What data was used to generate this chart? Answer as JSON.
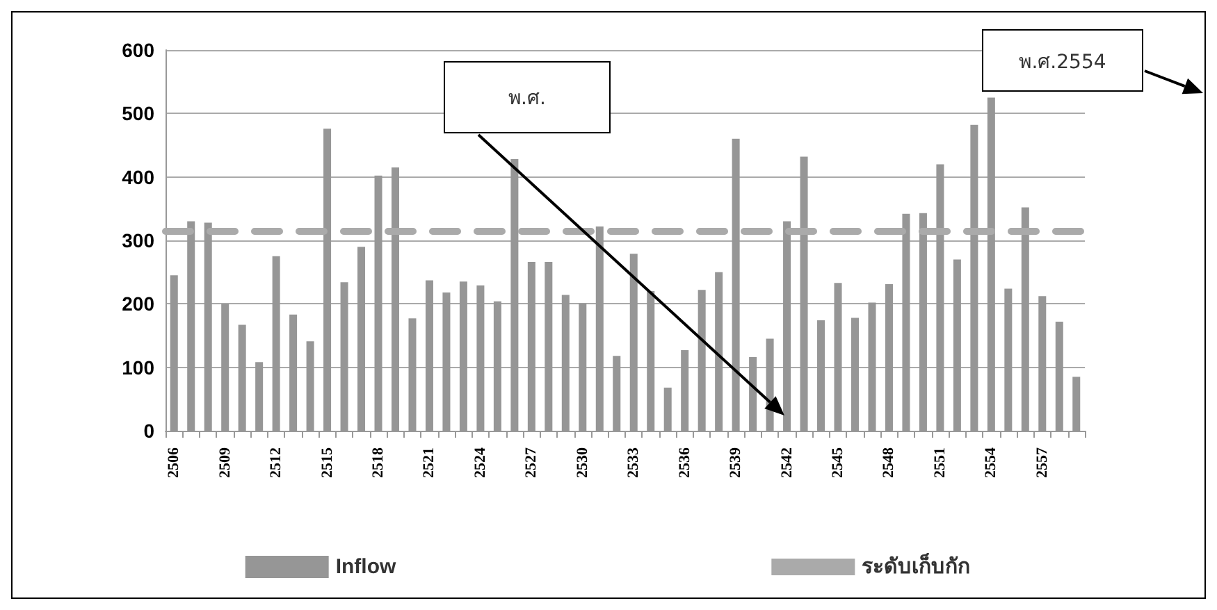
{
  "chart_data": {
    "type": "bar",
    "categories": [
      "2506",
      null,
      null,
      "2509",
      null,
      null,
      "2512",
      null,
      null,
      "2515",
      null,
      null,
      "2518",
      null,
      null,
      "2521",
      null,
      null,
      "2524",
      null,
      null,
      "2527",
      null,
      null,
      "2530",
      null,
      null,
      "2533",
      null,
      null,
      "2536",
      null,
      null,
      "2539",
      null,
      null,
      "2542",
      null,
      null,
      "2545",
      null,
      null,
      "2548",
      null,
      null,
      "2551",
      null,
      null,
      "2554",
      null,
      null,
      "2557",
      null,
      null
    ],
    "series": [
      {
        "name": "Inflow",
        "color": "#969696",
        "values": [
          245,
          330,
          328,
          200,
          167,
          108,
          275,
          183,
          141,
          476,
          234,
          290,
          402,
          415,
          177,
          237,
          218,
          235,
          229,
          204,
          428,
          266,
          266,
          214,
          201,
          322,
          118,
          279,
          220,
          68,
          127,
          222,
          250,
          460,
          116,
          145,
          330,
          432,
          174,
          233,
          178,
          202,
          231,
          342,
          343,
          420,
          270,
          482,
          525,
          224,
          352,
          212,
          172,
          85
        ]
      }
    ],
    "ref_lines": [
      {
        "axis": "y",
        "value": 315,
        "label": "ระดับเก็บกัก",
        "color": "#aaaaaa",
        "line_style": "dashed"
      }
    ],
    "annotations": [
      "พ.ศ.",
      "พ.ศ.2554"
    ],
    "ylim": [
      0,
      600
    ],
    "yticks": [
      0,
      100,
      200,
      300,
      400,
      500,
      600
    ],
    "grid": "y",
    "legend": "bottom"
  }
}
